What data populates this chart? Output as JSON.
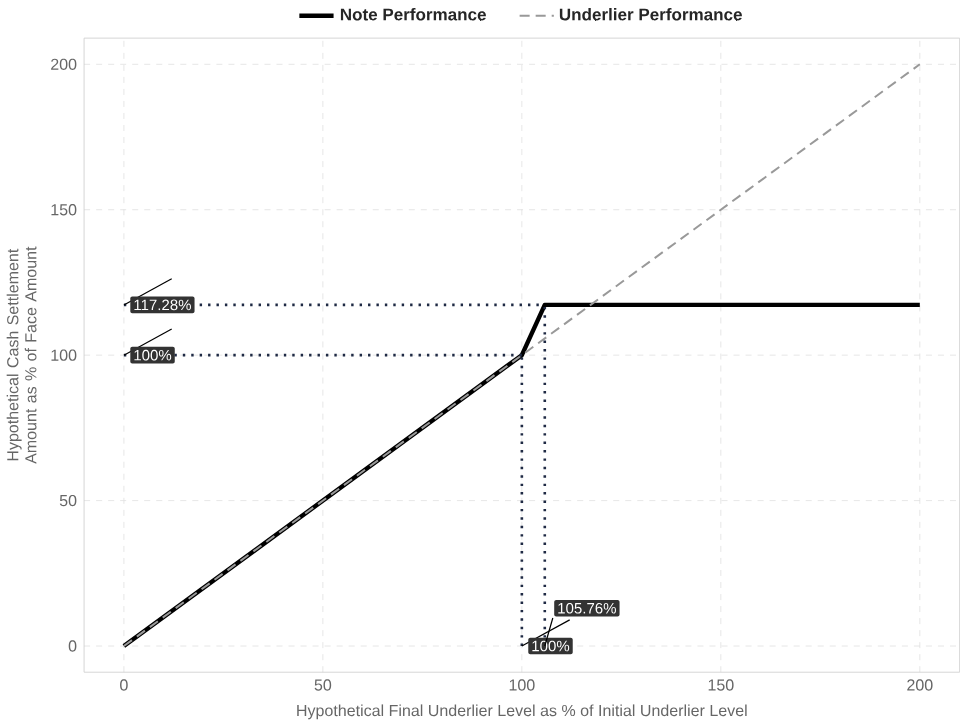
{
  "chart_data": {
    "type": "line",
    "xlabel": "Hypothetical Final Underlier Level as % of Initial Underlier Level",
    "ylabel": "Hypothetical Cash Settlement Amount as % of Face Amount",
    "xlim": [
      -10,
      210
    ],
    "ylim": [
      -9,
      209
    ],
    "xticks": [
      0,
      50,
      100,
      150,
      200
    ],
    "yticks": [
      0,
      50,
      100,
      150,
      200
    ],
    "grid": true,
    "legend": "top",
    "marker": "none",
    "series": [
      {
        "name": "Note Performance",
        "color": "#000000",
        "line_style": "solid",
        "x": [
          0,
          100,
          105.76,
          200
        ],
        "values": [
          0,
          100,
          117.28,
          117.28
        ]
      },
      {
        "name": "Underlier Performance",
        "color": "#999999",
        "line_style": "dashed",
        "x": [
          0,
          200
        ],
        "values": [
          0,
          200
        ]
      },
      {
        "color": "#1f2a44",
        "line_style": "dotted",
        "x": [
          0,
          105.76
        ],
        "values": [
          117.28,
          117.28
        ]
      },
      {
        "color": "#1f2a44",
        "line_style": "dotted",
        "x": [
          0,
          100
        ],
        "values": [
          100,
          100
        ]
      },
      {
        "color": "#1f2a44",
        "line_style": "dotted",
        "x": [
          100,
          100
        ],
        "values": [
          0,
          100
        ]
      },
      {
        "color": "#1f2a44",
        "line_style": "dotted",
        "x": [
          105.76,
          105.76
        ],
        "values": [
          0,
          117.28
        ]
      }
    ],
    "annotations": [
      {
        "text": "117.28%",
        "x": 0,
        "y": 117.28
      },
      {
        "text": "100%",
        "x": 0,
        "y": 100
      },
      {
        "text": "100%",
        "x": 100,
        "y": 0
      },
      {
        "text": "105.76%",
        "x": 105.76,
        "y": 0
      }
    ]
  }
}
